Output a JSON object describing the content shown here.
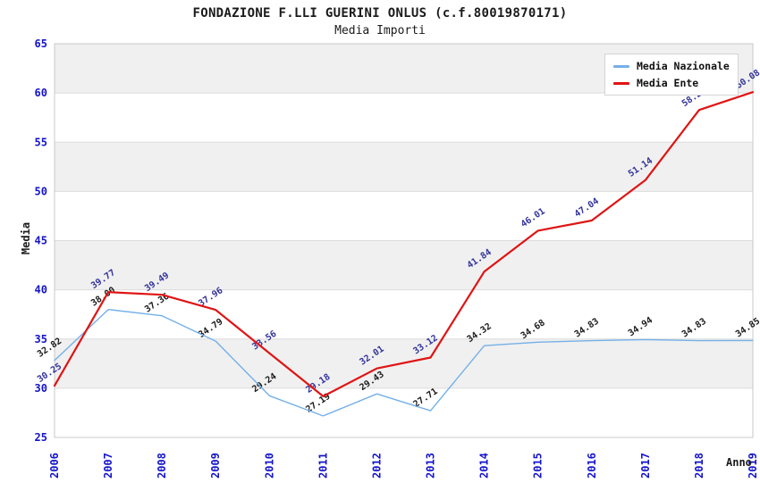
{
  "header": {
    "title": "FONDAZIONE F.LLI GUERINI ONLUS (c.f.80019870171)",
    "subtitle": "Media Importi"
  },
  "legend": {
    "items": [
      {
        "label": "Media Nazionale"
      },
      {
        "label": "Media Ente"
      }
    ]
  },
  "chart_data": {
    "type": "line",
    "title": "FONDAZIONE F.LLI GUERINI ONLUS (c.f.80019870171)",
    "subtitle": "Media Importi",
    "xlabel": "Anno",
    "ylabel": "Media",
    "x": [
      2006,
      2007,
      2008,
      2009,
      2010,
      2011,
      2012,
      2013,
      2014,
      2015,
      2016,
      2017,
      2018,
      2019
    ],
    "series": [
      {
        "name": "Media Nazionale",
        "color": "#74b0e8",
        "label_color": "#1a1a1a",
        "width": 1.4,
        "values": [
          32.82,
          38.0,
          37.36,
          34.79,
          29.24,
          27.19,
          29.43,
          27.71,
          34.32,
          34.68,
          34.83,
          34.94,
          34.83,
          34.85
        ],
        "labels": [
          "32.82",
          "38.00",
          "37.36",
          "34.79",
          "29.24",
          "27.19",
          "29.43",
          "27.71",
          "34.32",
          "34.68",
          "34.83",
          "34.94",
          "34.83",
          "34.85"
        ]
      },
      {
        "name": "Media Ente",
        "color": "#e01414",
        "label_color": "#32329b",
        "width": 2.2,
        "values": [
          30.25,
          39.77,
          39.49,
          37.96,
          33.56,
          29.18,
          32.01,
          33.12,
          41.84,
          46.01,
          47.04,
          51.14,
          58.27,
          60.08
        ],
        "labels": [
          "30.25",
          "39.77",
          "39.49",
          "37.96",
          "33.56",
          "29.18",
          "32.01",
          "33.12",
          "41.84",
          "46.01",
          "47.04",
          "51.14",
          "58.27",
          "60.08"
        ]
      }
    ],
    "ylim": [
      25,
      65
    ],
    "ytick_step": 5,
    "tick_color": "#1414cc",
    "band_colors": [
      "#f0f0f0",
      "#ffffff"
    ],
    "gridline_color": "#dcdcdc",
    "plot_border_color": "#c9c9c9",
    "grid": true,
    "legend_position": "top-right"
  }
}
